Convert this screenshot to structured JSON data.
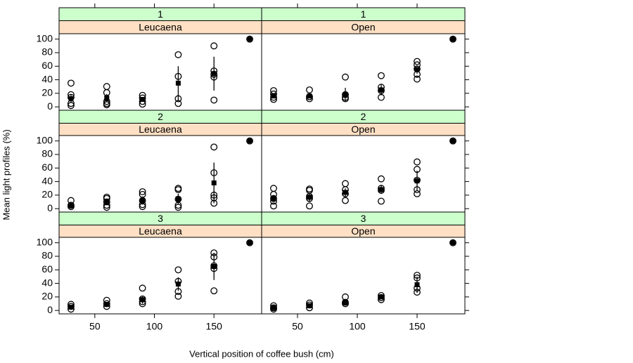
{
  "chart_data": {
    "type": "scatter",
    "xlabel": "Vertical position of coffee bush (cm)",
    "ylabel": "Mean light profiles (%)",
    "xlim": [
      20,
      190
    ],
    "ylim": [
      -5,
      108
    ],
    "xticks": [
      50,
      100,
      150
    ],
    "yticks": [
      0,
      20,
      40,
      60,
      80,
      100
    ],
    "strip_colors": [
      "#ccffcc",
      "#ffe0c4"
    ],
    "panels": [
      {
        "level": "1",
        "treatment": "Leucaena",
        "points": {
          "x": [
            30,
            30,
            30,
            30,
            30,
            60,
            60,
            60,
            60,
            60,
            90,
            90,
            90,
            90,
            120,
            120,
            120,
            120,
            150,
            150,
            150,
            150,
            150,
            180
          ],
          "y": [
            35,
            18,
            14,
            5,
            2,
            30,
            21,
            8,
            5,
            3,
            17,
            13,
            8,
            4,
            77,
            45,
            12,
            5,
            90,
            53,
            44,
            48,
            10,
            100
          ]
        },
        "means": {
          "x": [
            30,
            60,
            90,
            120,
            150,
            180
          ],
          "values": [
            12,
            13,
            11,
            35,
            49,
            100
          ],
          "errors": [
            6,
            6,
            3,
            25,
            25,
            0
          ]
        }
      },
      {
        "level": "1",
        "treatment": "Open",
        "points": {
          "x": [
            30,
            30,
            30,
            30,
            60,
            60,
            60,
            90,
            90,
            90,
            90,
            120,
            120,
            120,
            120,
            150,
            150,
            150,
            150,
            150,
            180
          ],
          "y": [
            24,
            19,
            14,
            11,
            25,
            15,
            12,
            44,
            18,
            14,
            12,
            46,
            29,
            24,
            14,
            67,
            62,
            56,
            48,
            41,
            100
          ]
        },
        "means": {
          "x": [
            30,
            60,
            90,
            120,
            150,
            180
          ],
          "values": [
            16,
            16,
            18,
            25,
            55,
            100
          ],
          "errors": [
            3,
            3,
            10,
            8,
            6,
            0
          ]
        }
      },
      {
        "level": "2",
        "treatment": "Leucaena",
        "points": {
          "x": [
            30,
            30,
            30,
            60,
            60,
            60,
            60,
            60,
            90,
            90,
            90,
            90,
            90,
            120,
            120,
            120,
            120,
            120,
            150,
            150,
            150,
            150,
            150,
            180
          ],
          "y": [
            12,
            5,
            3,
            17,
            15,
            10,
            5,
            2,
            25,
            21,
            12,
            6,
            3,
            30,
            28,
            14,
            5,
            2,
            91,
            53,
            20,
            16,
            8,
            100
          ]
        },
        "means": {
          "x": [
            30,
            60,
            90,
            120,
            150,
            180
          ],
          "values": [
            5,
            10,
            12,
            14,
            38,
            100
          ],
          "errors": [
            2,
            4,
            6,
            8,
            30,
            0
          ]
        }
      },
      {
        "level": "2",
        "treatment": "Open",
        "points": {
          "x": [
            30,
            30,
            30,
            30,
            30,
            60,
            60,
            60,
            60,
            60,
            90,
            90,
            90,
            90,
            120,
            120,
            120,
            120,
            150,
            150,
            150,
            150,
            150,
            180
          ],
          "y": [
            30,
            21,
            15,
            11,
            4,
            29,
            27,
            18,
            15,
            4,
            37,
            28,
            22,
            12,
            44,
            30,
            27,
            11,
            69,
            58,
            42,
            28,
            22,
            100
          ]
        },
        "means": {
          "x": [
            30,
            60,
            90,
            120,
            150,
            180
          ],
          "values": [
            15,
            17,
            24,
            28,
            41,
            100
          ],
          "errors": [
            5,
            6,
            6,
            6,
            15,
            0
          ]
        }
      },
      {
        "level": "3",
        "treatment": "Leucaena",
        "points": {
          "x": [
            30,
            30,
            30,
            60,
            60,
            60,
            90,
            90,
            90,
            90,
            120,
            120,
            120,
            120,
            150,
            150,
            150,
            150,
            150,
            180
          ],
          "y": [
            9,
            6,
            2,
            15,
            10,
            6,
            33,
            17,
            13,
            10,
            60,
            43,
            28,
            21,
            85,
            79,
            66,
            62,
            29,
            100
          ]
        },
        "means": {
          "x": [
            30,
            60,
            90,
            120,
            150,
            180
          ],
          "values": [
            5,
            9,
            16,
            39,
            65,
            100
          ],
          "errors": [
            2,
            3,
            6,
            10,
            20,
            0
          ]
        }
      },
      {
        "level": "3",
        "treatment": "Open",
        "points": {
          "x": [
            30,
            30,
            30,
            60,
            60,
            60,
            90,
            90,
            90,
            120,
            120,
            120,
            150,
            150,
            150,
            150,
            180
          ],
          "y": [
            7,
            4,
            2,
            11,
            8,
            4,
            20,
            12,
            10,
            22,
            19,
            16,
            52,
            48,
            33,
            27,
            100
          ]
        },
        "means": {
          "x": [
            30,
            60,
            90,
            120,
            150,
            180
          ],
          "values": [
            4,
            7,
            12,
            20,
            38,
            100
          ],
          "errors": [
            2,
            3,
            3,
            3,
            12,
            0
          ]
        }
      }
    ]
  }
}
